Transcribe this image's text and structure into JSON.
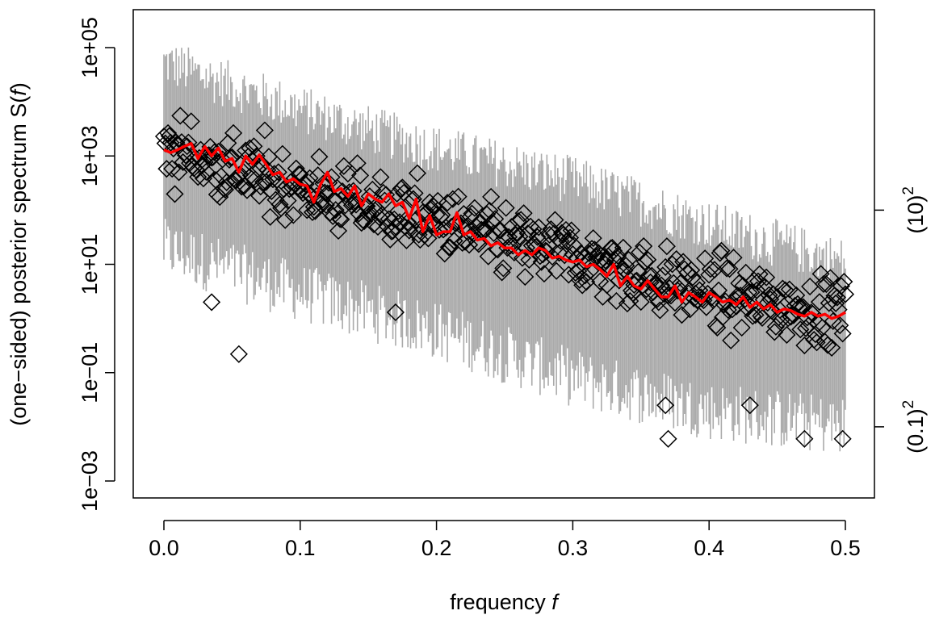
{
  "chart_data": {
    "type": "scatter",
    "xlabel": "frequency",
    "xlabel_var": "f",
    "ylabel": "(one−sided) posterior spectrum",
    "ylabel_var": "S(",
    "ylabel_var_f": "f",
    "ylabel_close": ")",
    "xlim": [
      0,
      0.5
    ],
    "ylim": [
      0.001,
      100000
    ],
    "y_log_scale": true,
    "grid": false,
    "x_ticks": [
      {
        "value": 0.0,
        "label": "0.0"
      },
      {
        "value": 0.1,
        "label": "0.1"
      },
      {
        "value": 0.2,
        "label": "0.2"
      },
      {
        "value": 0.3,
        "label": "0.3"
      },
      {
        "value": 0.4,
        "label": "0.4"
      },
      {
        "value": 0.5,
        "label": "0.5"
      }
    ],
    "y_ticks": [
      {
        "value": 0.001,
        "label": "1e−03"
      },
      {
        "value": 0.1,
        "label": "1e−01"
      },
      {
        "value": 10,
        "label": "1e+01"
      },
      {
        "value": 1000,
        "label": "1e+03"
      },
      {
        "value": 100000,
        "label": "1e+05"
      }
    ],
    "y2_ticks": [
      {
        "value": 0.01,
        "base": "(0.1)",
        "exp": "2"
      },
      {
        "value": 100,
        "base": "(10)",
        "exp": "2"
      }
    ],
    "colors": {
      "intervals": "#aaaaaa",
      "points": "#000000",
      "median": "#ff0000"
    },
    "series": [
      {
        "kind": "interval-bars",
        "color": "#aaaaaa",
        "approx_upper_trend": {
          "x": [
            0.0,
            0.1,
            0.2,
            0.3,
            0.4,
            0.5
          ],
          "y": [
            60000,
            8000,
            1500,
            400,
            60,
            12
          ]
        },
        "approx_lower_trend": {
          "x": [
            0.0,
            0.1,
            0.2,
            0.3,
            0.4,
            0.5
          ],
          "y": [
            20,
            3,
            0.6,
            0.08,
            0.02,
            0.01
          ]
        }
      },
      {
        "kind": "points",
        "marker": "diamond",
        "approx_trend": {
          "x": [
            0.0,
            0.05,
            0.1,
            0.15,
            0.2,
            0.25,
            0.3,
            0.35,
            0.4,
            0.45,
            0.5
          ],
          "y": [
            1500,
            600,
            250,
            120,
            60,
            25,
            15,
            6,
            3,
            1.8,
            1.2
          ]
        },
        "notable": [
          {
            "x": 0.035,
            "y": 2
          },
          {
            "x": 0.055,
            "y": 0.22
          },
          {
            "x": 0.17,
            "y": 1.3
          },
          {
            "x": 0.37,
            "y": 0.006
          },
          {
            "x": 0.368,
            "y": 0.025
          },
          {
            "x": 0.47,
            "y": 0.006
          },
          {
            "x": 0.498,
            "y": 0.006
          },
          {
            "x": 0.43,
            "y": 0.025
          }
        ]
      },
      {
        "kind": "line",
        "color": "#ff0000",
        "x": [
          0.0,
          0.005,
          0.01,
          0.015,
          0.02,
          0.025,
          0.03,
          0.035,
          0.04,
          0.045,
          0.05,
          0.055,
          0.06,
          0.065,
          0.07,
          0.075,
          0.08,
          0.085,
          0.09,
          0.095,
          0.1,
          0.105,
          0.11,
          0.115,
          0.12,
          0.125,
          0.13,
          0.135,
          0.14,
          0.145,
          0.15,
          0.155,
          0.16,
          0.165,
          0.17,
          0.175,
          0.18,
          0.185,
          0.19,
          0.195,
          0.2,
          0.205,
          0.21,
          0.215,
          0.22,
          0.225,
          0.23,
          0.235,
          0.24,
          0.245,
          0.25,
          0.255,
          0.26,
          0.265,
          0.27,
          0.275,
          0.28,
          0.285,
          0.29,
          0.295,
          0.3,
          0.305,
          0.31,
          0.315,
          0.32,
          0.325,
          0.33,
          0.335,
          0.34,
          0.345,
          0.35,
          0.355,
          0.36,
          0.365,
          0.37,
          0.375,
          0.38,
          0.385,
          0.39,
          0.395,
          0.4,
          0.405,
          0.41,
          0.415,
          0.42,
          0.425,
          0.43,
          0.435,
          0.44,
          0.445,
          0.45,
          0.455,
          0.46,
          0.465,
          0.47,
          0.475,
          0.48,
          0.485,
          0.49,
          0.495,
          0.5
        ],
        "y": [
          1300,
          1150,
          1300,
          1500,
          1700,
          900,
          1500,
          1000,
          1400,
          800,
          900,
          500,
          1000,
          700,
          1050,
          700,
          450,
          500,
          330,
          380,
          300,
          280,
          140,
          300,
          500,
          220,
          250,
          180,
          280,
          120,
          200,
          160,
          140,
          200,
          120,
          140,
          70,
          160,
          40,
          80,
          35,
          40,
          40,
          90,
          35,
          40,
          28,
          30,
          22,
          25,
          20,
          20,
          15,
          18,
          15,
          20,
          18,
          13,
          14,
          12,
          11,
          12,
          9,
          10,
          8,
          6,
          10,
          4,
          6,
          4,
          3.5,
          5,
          3.5,
          2.5,
          2.5,
          4,
          2,
          3,
          2.5,
          2,
          3,
          2.5,
          2,
          2.2,
          1.8,
          2.5,
          1.6,
          2,
          1.5,
          1.8,
          1.3,
          1.5,
          1.4,
          1.2,
          1.1,
          1.3,
          1.1,
          1.2,
          1.0,
          1.1,
          1.3
        ]
      }
    ]
  }
}
